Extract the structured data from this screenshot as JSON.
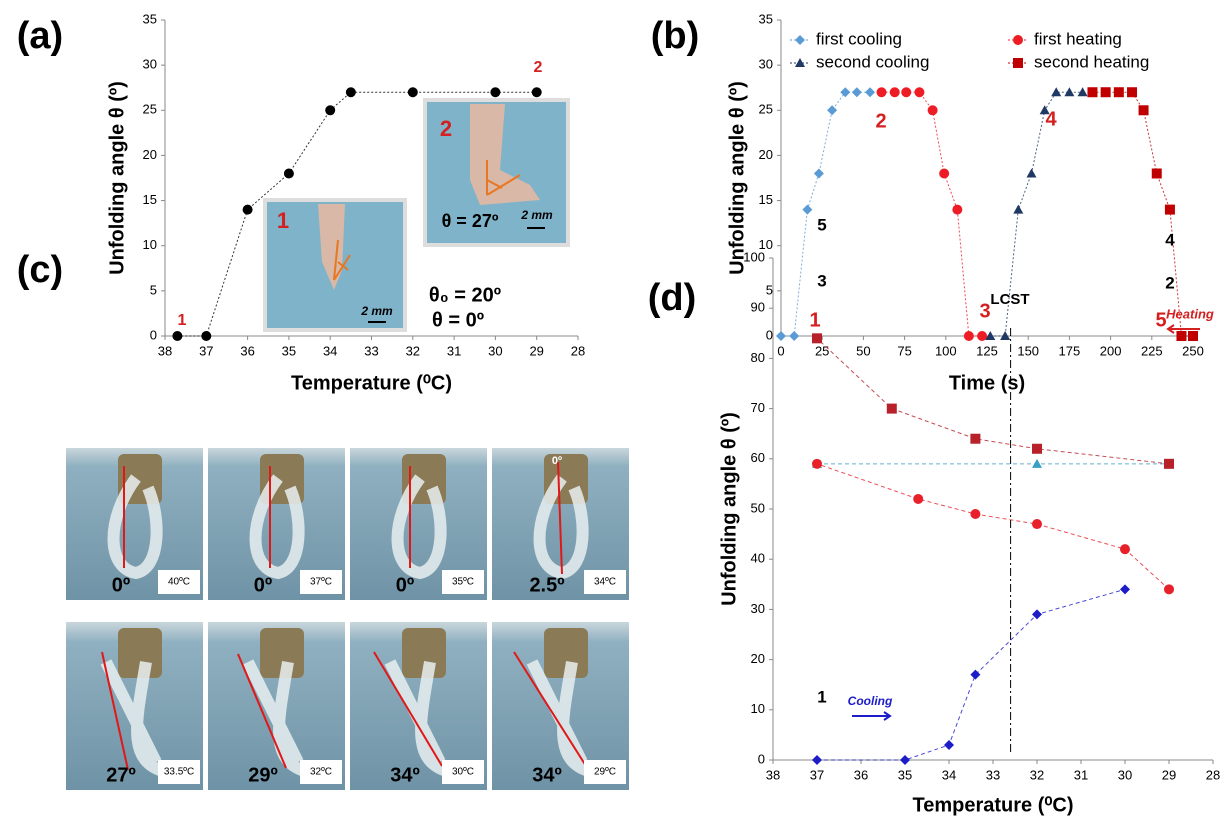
{
  "chart_data": [
    {
      "type": "line",
      "panel_label": "(a)",
      "x_label": "Temperature (⁰C)",
      "y_label": "Unfolding angle  θ  (º)",
      "xlim": [
        38,
        28
      ],
      "xticks": [
        38,
        37,
        36,
        35,
        34,
        33,
        32,
        31,
        30,
        29,
        28
      ],
      "ylim": [
        0,
        35
      ],
      "yticks": [
        0,
        5,
        10,
        15,
        20,
        25,
        30,
        35
      ],
      "line_style": "dotted",
      "series": [
        {
          "color": "#000000",
          "marker": "circle",
          "x": [
            37.7,
            37,
            36,
            35,
            34,
            33.5,
            32,
            30,
            29
          ],
          "values": [
            0,
            0,
            14,
            18,
            25,
            27,
            27,
            27,
            27
          ]
        }
      ],
      "annotations": [
        "1",
        "2",
        "1",
        "2",
        "θ = 27º",
        "2 mm",
        "2 mm",
        "θ₀ = 20º",
        "θ = 0º"
      ]
    },
    {
      "type": "line",
      "panel_label": "(b)",
      "x_label": "Time (s)",
      "y_label": "Unfolding angle θ  (º)",
      "xlim": [
        0,
        250
      ],
      "xticks": [
        0,
        25,
        50,
        75,
        100,
        125,
        150,
        175,
        200,
        225,
        250
      ],
      "ylim": [
        0,
        35
      ],
      "yticks": [
        0,
        5,
        10,
        15,
        20,
        25,
        30,
        35
      ],
      "line_style": "dotted",
      "legend": "top",
      "series": [
        {
          "name": "first cooling",
          "color": "#5b9bd5",
          "marker": "diamond",
          "x": [
            0,
            8,
            16,
            23,
            31,
            39,
            46,
            54
          ],
          "values": [
            0,
            0,
            14,
            18,
            25,
            27,
            27,
            27
          ]
        },
        {
          "name": "first heating",
          "color": "#ee1c24",
          "marker": "circle",
          "x": [
            61,
            69,
            76,
            84,
            92,
            99,
            107,
            114,
            122
          ],
          "values": [
            27,
            27,
            27,
            27,
            25,
            18,
            14,
            0,
            0
          ]
        },
        {
          "name": "second cooling",
          "color": "#1f3864",
          "marker": "triangle",
          "x": [
            127,
            136,
            144,
            152,
            160,
            167,
            175,
            183
          ],
          "values": [
            0,
            0,
            14,
            18,
            25,
            27,
            27,
            27
          ]
        },
        {
          "name": "second heating",
          "color": "#c00000",
          "marker": "square",
          "x": [
            189,
            197,
            205,
            213,
            220,
            228,
            236,
            243,
            250
          ],
          "values": [
            27,
            27,
            27,
            27,
            25,
            18,
            14,
            0,
            0
          ]
        }
      ],
      "annotations": [
        "1",
        "2",
        "3",
        "4",
        "5"
      ]
    },
    {
      "type": "line",
      "panel_label": "(d)",
      "x_label": "Temperature (⁰C)",
      "y_label": "Unfolding angle θ (º)",
      "xlim": [
        38,
        28
      ],
      "xticks": [
        38,
        37,
        36,
        35,
        34,
        33,
        32,
        31,
        30,
        29,
        28
      ],
      "ylim": [
        0,
        100
      ],
      "yticks": [
        0,
        10,
        20,
        30,
        40,
        50,
        60,
        70,
        80,
        90,
        100
      ],
      "line_style": "dashed",
      "vlines": [
        32.6
      ],
      "series": [
        {
          "color": "#3a9fc4",
          "marker": "triangle",
          "x": [
            37,
            32,
            29
          ],
          "values": [
            59,
            59,
            59
          ]
        },
        {
          "color": "#1c1cc8",
          "marker": "diamond",
          "x": [
            37,
            35,
            34,
            33.4,
            32,
            30
          ],
          "values": [
            0,
            0,
            3,
            17,
            29,
            34
          ]
        },
        {
          "color": "#e8202a",
          "marker": "circle",
          "x": [
            29,
            30,
            32,
            33.4,
            34.7,
            37
          ],
          "values": [
            34,
            42,
            47,
            49,
            52,
            59
          ]
        },
        {
          "color": "#b8202a",
          "marker": "square",
          "x": [
            29,
            32,
            33.4,
            35.3,
            37
          ],
          "values": [
            59,
            62,
            64,
            70,
            84
          ]
        }
      ],
      "annotations": [
        "5",
        "3",
        "4",
        "2",
        "1",
        "LCST",
        "Heating",
        "Cooling"
      ]
    }
  ],
  "panel_c": {
    "panel_label": "(c)",
    "reference": "0º",
    "photos": [
      {
        "angle": "0º",
        "temperature": "40ºC"
      },
      {
        "angle": "0º",
        "temperature": "37ºC"
      },
      {
        "angle": "0º",
        "temperature": "35ºC"
      },
      {
        "angle": "2.5º",
        "temperature": "34ºC"
      },
      {
        "angle": "27º",
        "temperature": "33.5ºC"
      },
      {
        "angle": "29º",
        "temperature": "32ºC"
      },
      {
        "angle": "34º",
        "temperature": "30ºC"
      },
      {
        "angle": "34º",
        "temperature": "29ºC"
      }
    ]
  }
}
